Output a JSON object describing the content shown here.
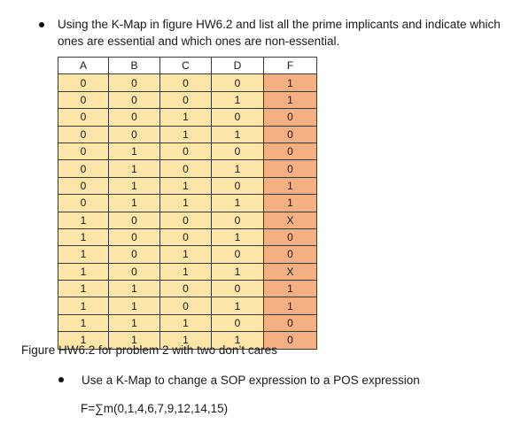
{
  "instruction": {
    "line1": "Using the K-Map in figure HW6.2 and list all the prime implicants and indicate which",
    "line2": "ones are essential and which ones are non-essential."
  },
  "table": {
    "headers": [
      "A",
      "B",
      "C",
      "D",
      "F"
    ],
    "rows": [
      [
        "0",
        "0",
        "0",
        "0",
        "1"
      ],
      [
        "0",
        "0",
        "0",
        "1",
        "1"
      ],
      [
        "0",
        "0",
        "1",
        "0",
        "0"
      ],
      [
        "0",
        "0",
        "1",
        "1",
        "0"
      ],
      [
        "0",
        "1",
        "0",
        "0",
        "0"
      ],
      [
        "0",
        "1",
        "0",
        "1",
        "0"
      ],
      [
        "0",
        "1",
        "1",
        "0",
        "1"
      ],
      [
        "0",
        "1",
        "1",
        "1",
        "1"
      ],
      [
        "1",
        "0",
        "0",
        "0",
        "X"
      ],
      [
        "1",
        "0",
        "0",
        "1",
        "0"
      ],
      [
        "1",
        "0",
        "1",
        "0",
        "0"
      ],
      [
        "1",
        "0",
        "1",
        "1",
        "X"
      ],
      [
        "1",
        "1",
        "0",
        "0",
        "1"
      ],
      [
        "1",
        "1",
        "0",
        "1",
        "1"
      ],
      [
        "1",
        "1",
        "1",
        "0",
        "0"
      ],
      [
        "1",
        "1",
        "1",
        "1",
        "0"
      ]
    ]
  },
  "caption": "Figure HW6.2 for problem 2 with two don’t cares",
  "sop_task": "Use a K-Map to change a SOP expression to a POS expression",
  "formula": "F=∑m(0,1,4,6,7,9,12,14,15)",
  "colors": {
    "input_fill": "#fce5a8",
    "output_fill": "#f4b083"
  }
}
